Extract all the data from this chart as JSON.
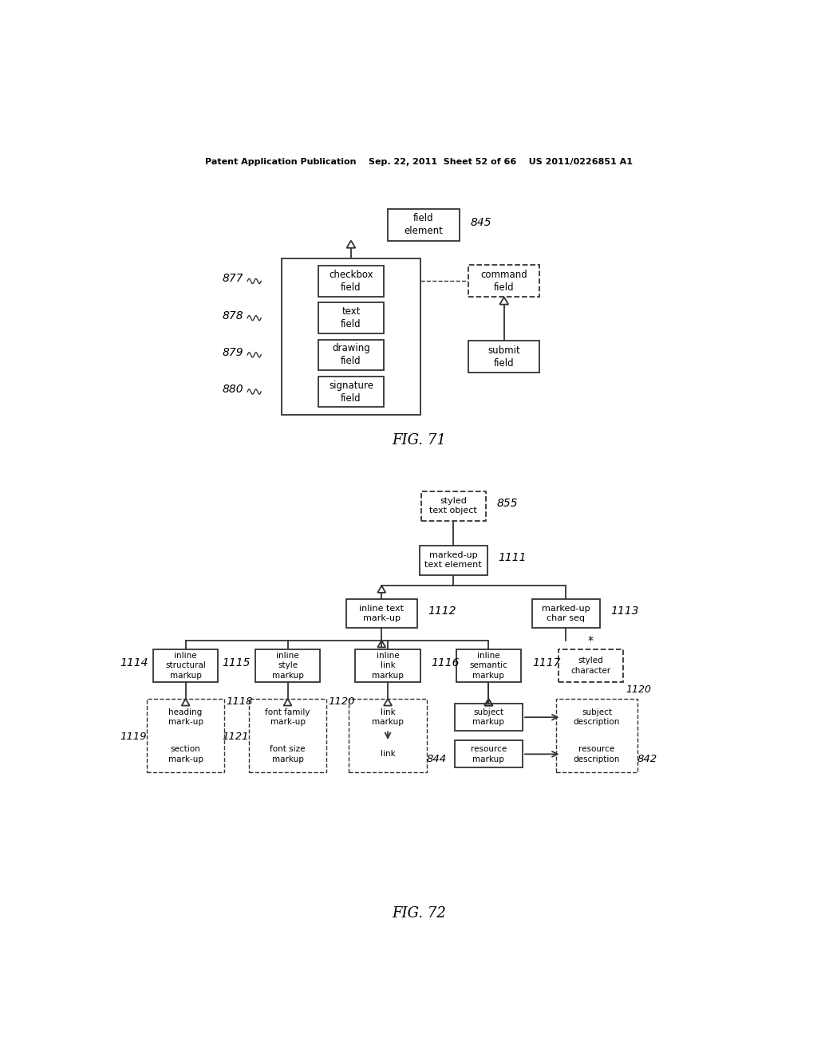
{
  "bg_color": "#ffffff",
  "header": "Patent Application Publication    Sep. 22, 2011  Sheet 52 of 66    US 2011/0226851 A1",
  "fig71_label": "FIG. 71",
  "fig72_label": "FIG. 72"
}
